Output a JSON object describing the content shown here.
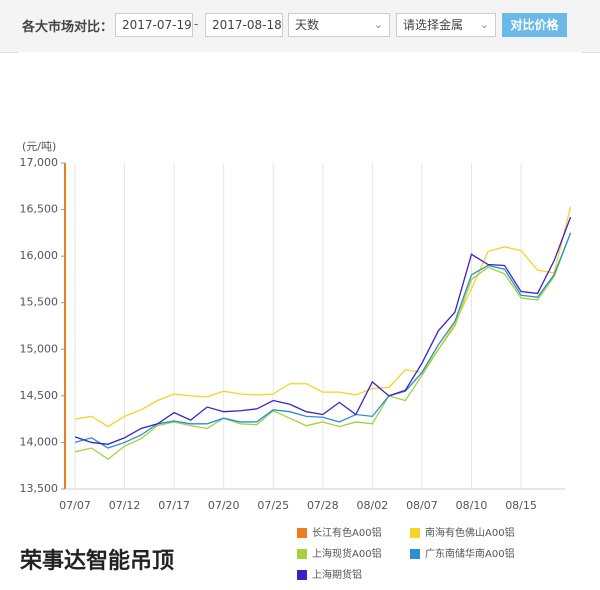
{
  "toolbar": {
    "label": "各大市场对比：",
    "start_date": "2017-07-19",
    "separator": "-",
    "end_date": "2017-08-18",
    "period": "天数",
    "metal": "请选择金属",
    "button": "对比价格"
  },
  "watermark": "荣事达智能吊顶",
  "chart_data": {
    "type": "line",
    "y_label": "(元/吨)",
    "categories": [
      "07/07",
      null,
      null,
      "07/12",
      null,
      null,
      "07/17",
      null,
      null,
      "07/20",
      null,
      null,
      "07/25",
      null,
      null,
      "07/28",
      null,
      null,
      "08/02",
      null,
      null,
      "08/07",
      null,
      null,
      "08/10",
      null,
      null,
      "08/15",
      null,
      null,
      null
    ],
    "ylim": [
      13500,
      17000
    ],
    "yticks": [
      {
        "value": 13500,
        "label": "13,500"
      },
      {
        "value": 14000,
        "label": "14,000"
      },
      {
        "value": 14500,
        "label": "14,500"
      },
      {
        "value": 15000,
        "label": "15,000"
      },
      {
        "value": 15500,
        "label": "15,500"
      },
      {
        "value": 16000,
        "label": "16,000"
      },
      {
        "value": 16500,
        "label": "16,500"
      },
      {
        "value": 17000,
        "label": "17,000"
      }
    ],
    "grid": true,
    "series": [
      {
        "name": "长江有色A00铝",
        "color": "#f07c1e",
        "values": [
          null,
          null,
          null,
          null,
          null,
          null,
          null,
          null,
          null,
          null,
          null,
          null,
          null,
          null,
          null,
          null,
          null,
          null,
          null,
          null,
          null,
          null,
          null,
          null,
          null,
          null,
          null,
          null,
          null,
          null,
          null
        ]
      },
      {
        "name": "南海有色佛山A00铝",
        "color": "#f5d327",
        "values": [
          14250,
          14280,
          14170,
          14280,
          14350,
          14450,
          14520,
          14500,
          14490,
          14550,
          14520,
          14510,
          14520,
          14630,
          14630,
          14540,
          14540,
          14510,
          14580,
          14590,
          14780,
          14750,
          15000,
          15280,
          15650,
          16050,
          16100,
          16060,
          15850,
          15820,
          16530
        ]
      },
      {
        "name": "上海现货A00铝",
        "color": "#a3d23c",
        "values": [
          13900,
          13940,
          13820,
          13960,
          14040,
          14180,
          14220,
          14180,
          14150,
          14260,
          14200,
          14190,
          14340,
          14260,
          14180,
          14220,
          14170,
          14220,
          14200,
          14500,
          14450,
          14720,
          15000,
          15250,
          15750,
          15880,
          15810,
          15550,
          15530,
          15780,
          16250
        ]
      },
      {
        "name": "广东南储华南A00铝",
        "color": "#2b8fd1",
        "values": [
          14000,
          14050,
          13940,
          14000,
          14080,
          14200,
          14230,
          14200,
          14200,
          14260,
          14220,
          14220,
          14350,
          14330,
          14280,
          14270,
          14220,
          14300,
          14280,
          14500,
          14550,
          14750,
          15050,
          15300,
          15800,
          15900,
          15860,
          15580,
          15560,
          15800,
          16250
        ]
      },
      {
        "name": "上海期货铝",
        "color": "#3a22c4",
        "values": [
          14060,
          14000,
          13980,
          14050,
          14150,
          14200,
          14320,
          14240,
          14380,
          14330,
          14340,
          14360,
          14450,
          14410,
          14330,
          14300,
          14430,
          14300,
          14650,
          14500,
          14560,
          14850,
          15200,
          15400,
          16020,
          15910,
          15900,
          15620,
          15600,
          15950,
          16420
        ]
      }
    ]
  }
}
